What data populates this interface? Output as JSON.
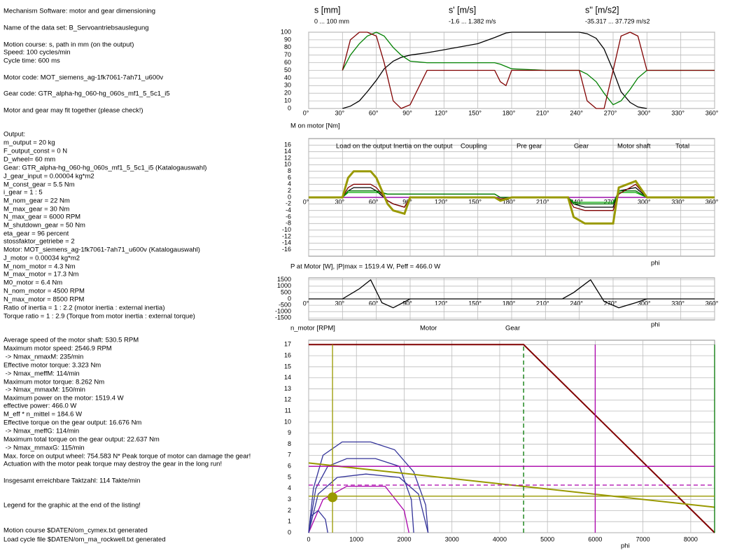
{
  "left_text": [
    "Mechanism Software: motor and gear dimensioning",
    "Name of the data set: B_Servoantriebsauslegung",
    "Motion course: s, path in mm (on the output)",
    "Speed: 100 cycles/min",
    "Cycle time: 600 ms",
    "Motor code: MOT_siemens_ag-1fk7061-7ah71_u600v",
    "Gear code: GTR_alpha-hg_060-hg_060s_mf1_5_5c1_i5",
    "Motor and gear may fit together (please check!)",
    "Output:",
    "m_output = 20 kg",
    "F_output_const = 0 N",
    "D_wheel= 60 mm",
    "Gear: GTR_alpha-hg_060-hg_060s_mf1_5_5c1_i5 (Katalogauswahl)",
    "J_gear_input = 0.00004 kg*m2",
    "M_const_gear = 5.5 Nm",
    "i_gear = 1 : 5",
    "M_nom_gear = 22 Nm",
    "M_max_gear = 30 Nm",
    "N_max_gear = 6000 RPM",
    "M_shutdown_gear = 50 Nm",
    "eta_gear = 96 percent",
    "stossfaktor_getriebe = 2",
    "Motor: MOT_siemens_ag-1fk7061-7ah71_u600v (Katalogauswahl)",
    "J_motor = 0.00034 kg*m2",
    "M_nom_motor = 4.3 Nm",
    "M_max_motor = 17.3 Nm",
    "M0_motor = 6.4 Nm",
    "N_nom_motor = 4500 RPM",
    "N_max_motor = 8500 RPM",
    "Ratio of inertia = 1 : 2.2 (motor inertia : external inertia)",
    "Torque ratio = 1 : 2.9 (Torque from motor inertia : external torque)",
    "Average speed of the motor shaft: 530.5 RPM",
    "Maximum motor speed: 2546.9 RPM",
    " -> Nmax_nmaxM: 235/min",
    "Effective motor torque: 3.323 Nm",
    " -> Nmax_meffM: 114/min",
    "Maximum motor torque: 8.262 Nm",
    " -> Nmax_mmaxM: 150/min",
    "Maximum power on the motor: 1519.4 W",
    "effective power: 466.0 W",
    "M_eff * n_mittel = 184.6 W",
    "Effective torque on the gear output: 16.676 Nm",
    " -> Nmax_meffG: 114/min",
    "Maximum total torque on the gear output: 22.637 Nm",
    " -> Nmax_mmaxG: 115/min",
    "Max. force on output wheel: 754.583 N* Peak torque of motor can damage the gear!",
    "Actuation with the motor peak torque may destroy the gear in the long run!",
    "Insgesamt erreichbare Taktzahl: 114 Takte/min",
    "Legend for the graphic at the end of the listing!",
    "Motion course $DATEN/om_cymex.txt generated",
    "Load cycle file $DATEN/om_ma_rockwell.txt generated"
  ],
  "chart_data": [
    {
      "type": "line",
      "x": [
        0,
        30,
        37,
        45,
        52,
        60,
        67,
        75,
        82,
        90,
        105,
        120,
        150,
        165,
        170,
        175,
        180,
        210,
        240,
        247,
        255,
        262,
        270,
        277,
        285,
        292,
        300,
        330,
        360
      ],
      "xlim": [
        0,
        360
      ],
      "xticks": [
        {
          "value": 0,
          "label": "0°"
        },
        {
          "value": 30,
          "label": "30°"
        },
        {
          "value": 60,
          "label": "60°"
        },
        {
          "value": 90,
          "label": "90°"
        },
        {
          "value": 120,
          "label": "120°"
        },
        {
          "value": 150,
          "label": "150°"
        },
        {
          "value": 180,
          "label": "180°"
        },
        {
          "value": 210,
          "label": "210°"
        },
        {
          "value": 240,
          "label": "240°"
        },
        {
          "value": 270,
          "label": "270°"
        },
        {
          "value": 300,
          "label": "300°"
        },
        {
          "value": 330,
          "label": "330°"
        },
        {
          "value": 360,
          "label": "360°"
        }
      ],
      "ylim": [
        0,
        100
      ],
      "yticks": [
        0,
        10,
        20,
        30,
        40,
        50,
        60,
        70,
        80,
        90,
        100
      ],
      "grid": true,
      "series": [
        {
          "name": "s [mm]",
          "range": "0 ... 100 mm",
          "color": "#000000",
          "values": [
            null,
            0,
            3,
            10,
            22,
            37,
            52,
            62,
            67,
            70,
            73,
            77,
            85,
            93,
            96,
            99,
            100,
            100,
            100,
            98,
            92,
            78,
            50,
            22,
            8,
            2,
            0,
            null,
            null
          ]
        },
        {
          "name": "s' [m/s]",
          "range": "-1.6 ... 1.382 m/s",
          "color": "#008000",
          "values": [
            null,
            50,
            70,
            85,
            95,
            100,
            95,
            80,
            70,
            62,
            60,
            60,
            60,
            60,
            58,
            55,
            52,
            50,
            50,
            45,
            35,
            20,
            5,
            10,
            25,
            40,
            50,
            50,
            50
          ]
        },
        {
          "name": "s'' [m/s2]",
          "range": "-35.317 ... 37.729 m/s2",
          "color": "#800000",
          "values": [
            null,
            50,
            90,
            100,
            100,
            95,
            60,
            10,
            0,
            5,
            50,
            50,
            50,
            50,
            35,
            30,
            50,
            50,
            50,
            10,
            0,
            0,
            50,
            95,
            100,
            95,
            50,
            50,
            50
          ]
        }
      ]
    },
    {
      "type": "line",
      "title": "M on motor [Nm]",
      "x_label": "phi",
      "x": [
        0,
        30,
        35,
        40,
        55,
        60,
        70,
        75,
        85,
        90,
        165,
        170,
        180,
        200,
        230,
        235,
        245,
        270,
        275,
        290,
        300,
        360
      ],
      "xlim": [
        0,
        360
      ],
      "xticks": [
        {
          "value": 0,
          "label": "0°"
        },
        {
          "value": 30,
          "label": "30°"
        },
        {
          "value": 60,
          "label": "60°"
        },
        {
          "value": 90,
          "label": "90°"
        },
        {
          "value": 120,
          "label": "120°"
        },
        {
          "value": 150,
          "label": "150°"
        },
        {
          "value": 180,
          "label": "180°"
        },
        {
          "value": 210,
          "label": "210°"
        },
        {
          "value": 240,
          "label": "240°"
        },
        {
          "value": 270,
          "label": "270°"
        },
        {
          "value": 300,
          "label": "300°"
        },
        {
          "value": 330,
          "label": "330°"
        },
        {
          "value": 360,
          "label": "360°"
        }
      ],
      "ylim": [
        -18,
        18
      ],
      "yticks": [
        16,
        14,
        12,
        10,
        8,
        6,
        4,
        2,
        0,
        -2,
        -4,
        -6,
        -8,
        -10,
        -12,
        -14,
        -16
      ],
      "grid": true,
      "series": [
        {
          "name": "Load on the output",
          "color": "#333399",
          "values": [
            0,
            0,
            0,
            0,
            0,
            0,
            0,
            0,
            0,
            0,
            0,
            0,
            0,
            0,
            0,
            0,
            0,
            0,
            0,
            0,
            0,
            0
          ]
        },
        {
          "name": "Inertia on the output",
          "color": "#000000",
          "values": [
            0,
            0,
            2,
            3,
            3,
            2,
            -1,
            -2,
            -3,
            0,
            0,
            -1,
            0,
            0,
            0,
            -2,
            -3,
            -3,
            2,
            3,
            0,
            0
          ]
        },
        {
          "name": "Coupling",
          "color": "#aa00aa",
          "values": [
            0,
            0,
            0,
            0,
            0,
            0,
            0,
            0,
            0,
            0,
            0,
            0,
            0,
            0,
            0,
            0,
            0,
            0,
            0,
            0,
            0,
            0
          ]
        },
        {
          "name": "Pre gear",
          "color": "#00aa00",
          "values": [
            0,
            0,
            1.5,
            1.5,
            1.5,
            1.5,
            1,
            1,
            1,
            1,
            1,
            0,
            0,
            0,
            0,
            -1.5,
            -1.5,
            -1.5,
            1.5,
            1.5,
            0,
            0
          ]
        },
        {
          "name": "Gear",
          "color": "#007700",
          "values": [
            0,
            0,
            2,
            2,
            2,
            2,
            1,
            1,
            1,
            1,
            1,
            0,
            0,
            0,
            0,
            -2,
            -2,
            -2,
            2,
            2,
            0,
            0
          ]
        },
        {
          "name": "Motor shaft",
          "color": "#800000",
          "values": [
            0,
            0,
            3,
            4,
            4,
            3,
            -1,
            -2,
            -3,
            0,
            0,
            -0.5,
            0,
            0,
            0,
            -3,
            -4,
            -4,
            1,
            4,
            0,
            0
          ]
        },
        {
          "name": "Total",
          "color": "#999900",
          "values": [
            0,
            0,
            6,
            8,
            8,
            6,
            -2,
            -4,
            -5,
            0,
            0,
            -1,
            0,
            0,
            0,
            -6,
            -8,
            -8,
            3,
            5,
            0,
            0
          ]
        }
      ]
    },
    {
      "type": "line",
      "title": "P at Motor [W], |P|max = 1519.4 W, Peff = 466.0 W",
      "x_label": "phi",
      "x": [
        0,
        30,
        45,
        55,
        65,
        75,
        90,
        180,
        225,
        235,
        250,
        262,
        275,
        290,
        300,
        360
      ],
      "xlim": [
        0,
        360
      ],
      "xticks": [
        {
          "value": 0,
          "label": "0°"
        },
        {
          "value": 30,
          "label": "30°"
        },
        {
          "value": 60,
          "label": "60°"
        },
        {
          "value": 90,
          "label": "90°"
        },
        {
          "value": 120,
          "label": "120°"
        },
        {
          "value": 150,
          "label": "150°"
        },
        {
          "value": 180,
          "label": "180°"
        },
        {
          "value": 210,
          "label": "210°"
        },
        {
          "value": 240,
          "label": "240°"
        },
        {
          "value": 270,
          "label": "270°"
        },
        {
          "value": 300,
          "label": "300°"
        },
        {
          "value": 330,
          "label": "330°"
        },
        {
          "value": 360,
          "label": "360°"
        }
      ],
      "ylim": [
        -1650,
        1650
      ],
      "yticks": [
        1500,
        1000,
        500,
        0,
        -500,
        -1000,
        -1500
      ],
      "grid": true,
      "series": [
        {
          "color": "#000000",
          "values": [
            0,
            0,
            800,
            1500,
            -300,
            -700,
            0,
            0,
            0,
            500,
            1500,
            -200,
            -700,
            -300,
            0,
            0
          ]
        }
      ]
    },
    {
      "type": "line",
      "title": "n_motor [RPM]",
      "x_label": "phi",
      "xlim": [
        0,
        8500
      ],
      "xticks": [
        0,
        1000,
        2000,
        3000,
        4000,
        5000,
        6000,
        7000,
        8000
      ],
      "ylim": [
        0,
        17.4
      ],
      "yticks": [
        0,
        1,
        2,
        3,
        4,
        5,
        6,
        7,
        8,
        9,
        10,
        11,
        12,
        13,
        14,
        15,
        16,
        17
      ],
      "grid": true,
      "series": [
        {
          "name": "Motor",
          "color": "#333399",
          "x": [
            0,
            100,
            300,
            700,
            1300,
            1800,
            2200,
            2450,
            2500
          ],
          "values": [
            0,
            4,
            7,
            8.2,
            8.2,
            7.5,
            5.5,
            2.5,
            0
          ]
        },
        {
          "name": "Gear",
          "color": "#aa00aa",
          "x": [
            0,
            300,
            800,
            1600,
            2000,
            2100
          ],
          "values": [
            0,
            3,
            4.2,
            4.2,
            2,
            0
          ]
        },
        {
          "color": "#333399",
          "x": [
            0,
            150,
            400,
            800,
            1400,
            1900,
            2150,
            2200
          ],
          "values": [
            0,
            4,
            6,
            6.7,
            6.7,
            6,
            3,
            0
          ]
        },
        {
          "color": "#333399",
          "x": [
            0,
            200,
            600,
            1200,
            1900,
            2300,
            2500
          ],
          "values": [
            0,
            3.5,
            5,
            5.3,
            5,
            3.5,
            0
          ]
        },
        {
          "color": "#333399",
          "x": [
            0,
            50,
            200,
            350,
            400
          ],
          "values": [
            0,
            1.5,
            2,
            1.2,
            0
          ]
        },
        {
          "color": "#800000",
          "x": [
            0,
            4500,
            8500
          ],
          "values": [
            17,
            17,
            0
          ]
        },
        {
          "color": "#999900",
          "x": [
            0,
            8500
          ],
          "values": [
            6.3,
            2.3
          ]
        },
        {
          "color": "#007700",
          "dashed": true,
          "x": [
            4500,
            4500
          ],
          "values": [
            0,
            17
          ]
        },
        {
          "color": "#007700",
          "x": [
            8500,
            8500
          ],
          "values": [
            0,
            17
          ]
        },
        {
          "color": "#aa00aa",
          "x": [
            6000,
            6000
          ],
          "values": [
            0,
            17
          ]
        },
        {
          "color": "#999900",
          "x": [
            500,
            500
          ],
          "values": [
            0,
            17
          ]
        },
        {
          "color": "#aa00aa",
          "x": [
            0,
            8500
          ],
          "values": [
            6,
            6
          ]
        },
        {
          "color": "#aa00aa",
          "dashed": true,
          "x": [
            0,
            8500
          ],
          "values": [
            4.3,
            4.3
          ]
        },
        {
          "color": "#999900",
          "x": [
            0,
            8500
          ],
          "values": [
            3.3,
            3.3
          ]
        },
        {
          "color": "#999900",
          "marker": true,
          "x": [
            500
          ],
          "values": [
            3.2
          ]
        }
      ]
    }
  ]
}
